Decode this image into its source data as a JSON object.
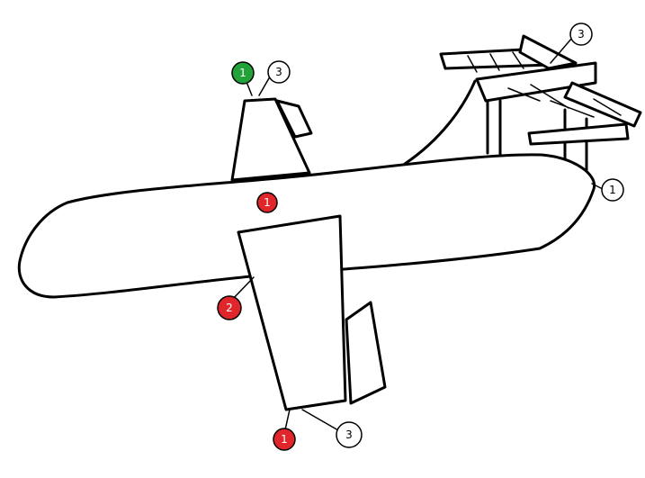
{
  "colors": {
    "green": "#22a33a",
    "red": "#e0262b",
    "white": "#ffffff",
    "ink": "#000000"
  },
  "markers": [
    {
      "id": "tail-fin-green",
      "label": "1",
      "color": "green"
    },
    {
      "id": "tail-fin-white",
      "label": "3",
      "color": "white"
    },
    {
      "id": "solar-panel",
      "label": "3",
      "color": "white"
    },
    {
      "id": "nose",
      "label": "1",
      "color": "white"
    },
    {
      "id": "fuselage",
      "label": "1",
      "color": "red"
    },
    {
      "id": "wing-root",
      "label": "2",
      "color": "red"
    },
    {
      "id": "wing-tip-red",
      "label": "1",
      "color": "red"
    },
    {
      "id": "wing-tip-white",
      "label": "3",
      "color": "white"
    }
  ]
}
